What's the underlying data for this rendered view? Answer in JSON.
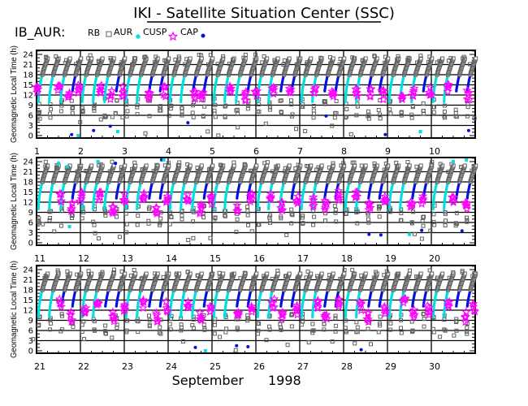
{
  "title": "IKI - Satellite Situation Center (SSC)",
  "instrument": "IB_AUR:",
  "legend": [
    {
      "label": "RB",
      "marker": "square",
      "color": "#606060"
    },
    {
      "label": "AUR",
      "marker": "asterisk",
      "color": "#00e0e0"
    },
    {
      "label": "CUSP",
      "marker": "star",
      "color": "#ff00ff"
    },
    {
      "label": "CAP",
      "marker": "dot",
      "color": "#0010e0"
    }
  ],
  "xlabel_month": "September",
  "xlabel_year": "1998",
  "chart_data": {
    "type": "scatter",
    "ylabel": "Geomagnetic Local Time (h)",
    "ylim": [
      0,
      24
    ],
    "yticks": [
      "0",
      "3",
      "6",
      "9",
      "12",
      "15",
      "18",
      "21",
      "24"
    ],
    "panels": [
      {
        "days": [
          "1",
          "2",
          "3",
          "4",
          "5",
          "6",
          "7",
          "8",
          "9",
          "10"
        ],
        "first_day": 1
      },
      {
        "days": [
          "11",
          "12",
          "13",
          "14",
          "15",
          "16",
          "17",
          "18",
          "19",
          "20"
        ],
        "first_day": 11
      },
      {
        "days": [
          "21",
          "22",
          "23",
          "24",
          "25",
          "26",
          "27",
          "28",
          "29",
          "30"
        ],
        "first_day": 21
      }
    ],
    "grid": true,
    "pass_offsets": [
      0.04,
      0.29,
      0.55,
      0.8
    ],
    "pass_types_per_day": [
      "aaab",
      "aaab",
      "aabb",
      "aabb",
      "aaab",
      "aabb",
      "aabb",
      "aabb",
      "aaab",
      "aabb",
      "aaab",
      "aaab",
      "aabb",
      "aaab",
      "aabb",
      "aaab",
      "aabb",
      "aabb",
      "aabb",
      "aabb",
      "aabb",
      "aabb",
      "aabb",
      "aaab",
      "aabb",
      "aabb",
      "aabb",
      "aabb",
      "aabb",
      "aabb"
    ],
    "cusp": [
      [
        1.02,
        13.5
      ],
      [
        1.52,
        14
      ],
      [
        1.75,
        11.5
      ],
      [
        1.97,
        13.5
      ],
      [
        2.47,
        14
      ],
      [
        2.7,
        12
      ],
      [
        2.97,
        13
      ],
      [
        3.58,
        12
      ],
      [
        3.93,
        13
      ],
      [
        4.62,
        12
      ],
      [
        4.78,
        11.5
      ],
      [
        5.42,
        14
      ],
      [
        5.78,
        11.5
      ],
      [
        6.02,
        13
      ],
      [
        6.4,
        13
      ],
      [
        6.8,
        14
      ],
      [
        7.35,
        13.5
      ],
      [
        7.75,
        12
      ],
      [
        8.3,
        12.5
      ],
      [
        8.62,
        13
      ],
      [
        8.9,
        12
      ],
      [
        9.35,
        12
      ],
      [
        9.6,
        13
      ],
      [
        9.98,
        13
      ],
      [
        10.4,
        14.5
      ],
      [
        10.85,
        12
      ],
      [
        11.55,
        13.5
      ],
      [
        11.8,
        10.5
      ],
      [
        12.02,
        13.5
      ],
      [
        12.45,
        13.5
      ],
      [
        12.75,
        10
      ],
      [
        13.02,
        13.5
      ],
      [
        13.45,
        14
      ],
      [
        13.75,
        10
      ],
      [
        13.98,
        13
      ],
      [
        14.45,
        13.5
      ],
      [
        14.75,
        10
      ],
      [
        14.98,
        12.5
      ],
      [
        15.6,
        10
      ],
      [
        15.9,
        13
      ],
      [
        16.35,
        14
      ],
      [
        16.6,
        11
      ],
      [
        16.95,
        12.5
      ],
      [
        17.3,
        12
      ],
      [
        17.6,
        11
      ],
      [
        17.9,
        14
      ],
      [
        18.3,
        14
      ],
      [
        18.6,
        11
      ],
      [
        18.95,
        12.5
      ],
      [
        19.55,
        11
      ],
      [
        19.8,
        12.5
      ],
      [
        20.5,
        13
      ],
      [
        20.8,
        11
      ],
      [
        21.55,
        14
      ],
      [
        21.8,
        10
      ],
      [
        22.12,
        12.5
      ],
      [
        22.4,
        14
      ],
      [
        22.75,
        10
      ],
      [
        23.02,
        13
      ],
      [
        23.45,
        14
      ],
      [
        23.75,
        10
      ],
      [
        23.98,
        13
      ],
      [
        24.45,
        14
      ],
      [
        24.75,
        10
      ],
      [
        24.98,
        12
      ],
      [
        25.6,
        10
      ],
      [
        25.9,
        12.5
      ],
      [
        26.4,
        14
      ],
      [
        26.6,
        10
      ],
      [
        26.95,
        12
      ],
      [
        27.4,
        14
      ],
      [
        27.6,
        10
      ],
      [
        27.9,
        14
      ],
      [
        28.4,
        13
      ],
      [
        28.55,
        10
      ],
      [
        28.95,
        12
      ],
      [
        29.4,
        14
      ],
      [
        29.6,
        11
      ],
      [
        29.95,
        12
      ],
      [
        30.4,
        14
      ],
      [
        30.8,
        10
      ],
      [
        30.98,
        13
      ]
    ],
    "cap_isolated": [
      [
        1.8,
        0.3
      ],
      [
        2.3,
        1.5
      ],
      [
        2.68,
        2.8
      ],
      [
        4.45,
        3.8
      ],
      [
        7.6,
        5.8
      ],
      [
        8.95,
        0.3
      ],
      [
        10.85,
        1.5
      ],
      [
        12.8,
        23.5
      ],
      [
        13.85,
        24.5
      ],
      [
        18.58,
        2.5
      ],
      [
        18.85,
        2.3
      ],
      [
        19.78,
        3.7
      ],
      [
        20.7,
        3.5
      ],
      [
        24.62,
        1
      ],
      [
        25.56,
        1.5
      ],
      [
        25.82,
        1.2
      ],
      [
        28.4,
        0.3
      ]
    ],
    "aur_isolated": [
      [
        1.95,
        0
      ],
      [
        2.85,
        1.2
      ],
      [
        9.75,
        1.2
      ],
      [
        11.5,
        23.5
      ],
      [
        11.7,
        22.5
      ],
      [
        11.75,
        4.8
      ],
      [
        12.4,
        24
      ],
      [
        13.9,
        24.5
      ],
      [
        24.85,
        0
      ],
      [
        19.5,
        2.5
      ],
      [
        20.5,
        24
      ],
      [
        20.8,
        24.5
      ]
    ]
  }
}
